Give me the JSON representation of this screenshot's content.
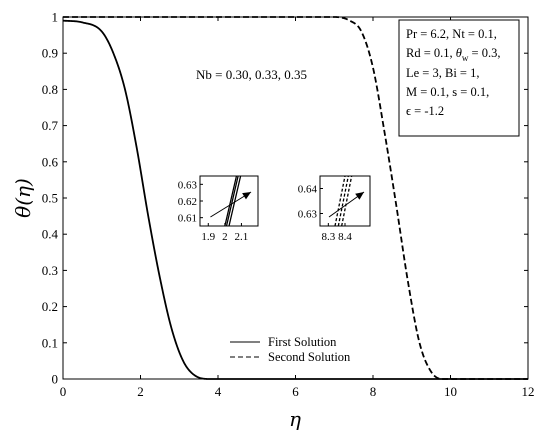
{
  "chart_data": {
    "type": "line",
    "xlabel": "η",
    "ylabel": "θ(η)",
    "xlim": [
      0,
      12
    ],
    "ylim": [
      0,
      1
    ],
    "xticks": [
      "0",
      "2",
      "4",
      "6",
      "8",
      "10",
      "12"
    ],
    "yticks": [
      "0",
      "0.1",
      "0.2",
      "0.3",
      "0.4",
      "0.5",
      "0.6",
      "0.7",
      "0.8",
      "0.9",
      "1"
    ],
    "annotation": "Nb = 0.30, 0.33, 0.35",
    "parameters": [
      "Pr = 6.2, Nt = 0.1,",
      "Rd = 0.1, θ_w = 0.3,",
      "Le = 3, Bi = 1,",
      "M = 0.1, s = 0.1,",
      "ϵ = -1.2"
    ],
    "legend": {
      "placement": "bottom-center",
      "entries": [
        "First Solution",
        "Second Solution"
      ]
    },
    "series": [
      {
        "name": "First Solution",
        "style": "solid",
        "color": "#000000",
        "x": [
          0,
          0.5,
          1.0,
          1.3,
          1.6,
          1.9,
          2.2,
          2.5,
          2.8,
          3.1,
          3.4,
          3.8,
          4.5,
          12
        ],
        "y": [
          0.99,
          0.985,
          0.96,
          0.9,
          0.8,
          0.64,
          0.45,
          0.28,
          0.14,
          0.05,
          0.01,
          0.0,
          0.0,
          0.0
        ]
      },
      {
        "name": "Second Solution",
        "style": "dashed",
        "color": "#000000",
        "x": [
          0,
          6.0,
          7.0,
          7.4,
          7.7,
          8.0,
          8.3,
          8.6,
          8.9,
          9.2,
          9.5,
          9.8,
          10.5,
          12
        ],
        "y": [
          1.0,
          1.0,
          1.0,
          0.99,
          0.96,
          0.86,
          0.68,
          0.48,
          0.27,
          0.1,
          0.02,
          0.0,
          0.0,
          0.0
        ]
      }
    ],
    "insets": [
      {
        "xlim": [
          1.85,
          2.2
        ],
        "ylim": [
          0.605,
          0.635
        ],
        "xticks": [
          "1.9",
          "2",
          "2.1"
        ],
        "yticks": [
          "0.61",
          "0.62",
          "0.63"
        ],
        "style": "solid",
        "lines": [
          {
            "x": [
              2.0,
              2.07
            ],
            "y": [
              0.605,
              0.635
            ]
          },
          {
            "x": [
              2.01,
              2.08
            ],
            "y": [
              0.605,
              0.635
            ]
          },
          {
            "x": [
              2.025,
              2.095
            ],
            "y": [
              0.605,
              0.635
            ]
          }
        ]
      },
      {
        "xlim": [
          8.25,
          8.55
        ],
        "ylim": [
          0.625,
          0.645
        ],
        "xticks": [
          "8.3",
          "8.4"
        ],
        "yticks": [
          "0.63",
          "0.64"
        ],
        "style": "dashed",
        "lines": [
          {
            "x": [
              8.34,
              8.4
            ],
            "y": [
              0.625,
              0.645
            ]
          },
          {
            "x": [
              8.36,
              8.42
            ],
            "y": [
              0.625,
              0.645
            ]
          },
          {
            "x": [
              8.38,
              8.44
            ],
            "y": [
              0.625,
              0.645
            ]
          }
        ]
      }
    ]
  }
}
